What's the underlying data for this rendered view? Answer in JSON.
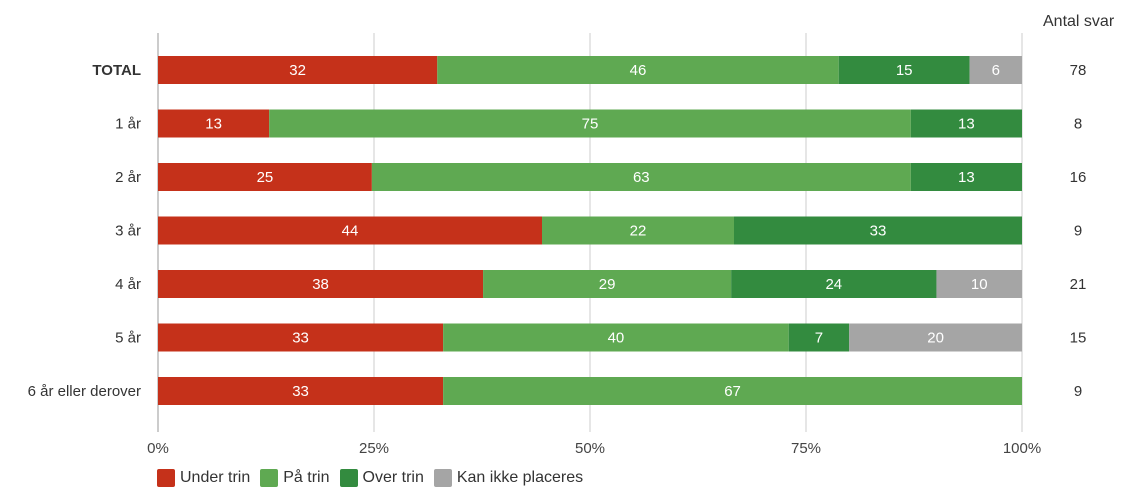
{
  "chart_data": {
    "type": "bar",
    "orientation": "horizontal",
    "stacked": "percent",
    "categories": [
      "TOTAL",
      "1 år",
      "2 år",
      "3 år",
      "4 år",
      "5 år",
      "6 år eller derover"
    ],
    "series": [
      {
        "name": "Under trin",
        "color": "#c5311a",
        "values": [
          32,
          13,
          25,
          44,
          38,
          33,
          33
        ]
      },
      {
        "name": "På trin",
        "color": "#5fa952",
        "values": [
          46,
          75,
          63,
          22,
          29,
          40,
          67
        ]
      },
      {
        "name": "Over trin",
        "color": "#338b3f",
        "values": [
          15,
          13,
          13,
          33,
          24,
          7,
          0
        ]
      },
      {
        "name": "Kan ikke placeres",
        "color": "#a5a5a5",
        "values": [
          6,
          0,
          0,
          0,
          10,
          20,
          0
        ]
      }
    ],
    "xticks": [
      "0%",
      "25%",
      "50%",
      "75%",
      "100%"
    ],
    "xlim": [
      0,
      100
    ],
    "grid": true,
    "legend_position": "bottom-left",
    "bold_categories": [
      "TOTAL"
    ],
    "count_header": "Antal svar",
    "counts": [
      78,
      8,
      16,
      9,
      21,
      15,
      9
    ]
  }
}
